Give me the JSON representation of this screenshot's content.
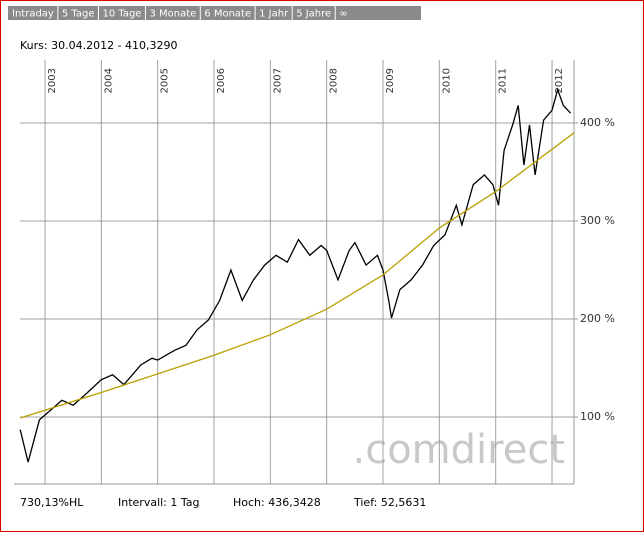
{
  "tabs": [
    "Intraday",
    "5 Tage",
    "10 Tage",
    "3 Monate",
    "6 Monate",
    "1 Jahr",
    "5 Jahre",
    "∞"
  ],
  "chart_data": {
    "type": "line",
    "title": "Kurs: 30.04.2012 - 410,3290",
    "watermark": ".comdirect",
    "footer": [
      "730,13%HL",
      "Intervall: 1 Tag",
      "Hoch: 436,3428",
      "Tief: 52,5631"
    ],
    "xlim": [
      2002.556,
      2012.39
    ],
    "xticks": [
      2003,
      2004,
      2005,
      2006,
      2007,
      2008,
      2009,
      2010,
      2011,
      2012
    ],
    "ylim": [
      31.6,
      464.3
    ],
    "yticks": [
      {
        "value": 100,
        "label": "100 %"
      },
      {
        "value": 200,
        "label": "200 %"
      },
      {
        "value": 300,
        "label": "300 %"
      },
      {
        "value": 400,
        "label": "400 %"
      }
    ],
    "grid": true,
    "series": [
      {
        "color": "#000000",
        "x": [
          2002.56,
          2002.7,
          2002.9,
          2003.1,
          2003.3,
          2003.5,
          2003.7,
          2004.0,
          2004.2,
          2004.4,
          2004.7,
          2004.9,
          2005.0,
          2005.3,
          2005.5,
          2005.7,
          2005.9,
          2006.1,
          2006.3,
          2006.5,
          2006.7,
          2006.9,
          2007.1,
          2007.3,
          2007.5,
          2007.7,
          2007.9,
          2008.0,
          2008.2,
          2008.4,
          2008.5,
          2008.7,
          2008.9,
          2009.0,
          2009.1,
          2009.15,
          2009.3,
          2009.5,
          2009.7,
          2009.9,
          2010.1,
          2010.3,
          2010.4,
          2010.6,
          2010.8,
          2010.95,
          2011.05,
          2011.15,
          2011.3,
          2011.4,
          2011.5,
          2011.6,
          2011.7,
          2011.85,
          2012.0,
          2012.1,
          2012.2,
          2012.33
        ],
        "values": [
          87,
          54,
          97,
          107,
          117,
          112,
          122,
          138,
          143,
          133,
          153,
          160,
          158,
          168,
          173,
          189,
          199,
          219,
          250,
          219,
          240,
          255,
          265,
          258,
          281,
          265,
          275,
          270,
          240,
          270,
          278,
          255,
          265,
          250,
          219,
          201,
          230,
          240,
          255,
          275,
          286,
          316,
          296,
          337,
          347,
          337,
          316,
          372,
          398,
          418,
          357,
          398,
          347,
          403,
          413,
          434,
          418,
          410
        ]
      },
      {
        "color": "#b8a000",
        "x": [
          2002.56,
          2004,
          2006,
          2007,
          2008,
          2009,
          2010,
          2011,
          2012.39
        ],
        "values": [
          99,
          125,
          163,
          184,
          210,
          245,
          293,
          330,
          390
        ]
      }
    ]
  }
}
